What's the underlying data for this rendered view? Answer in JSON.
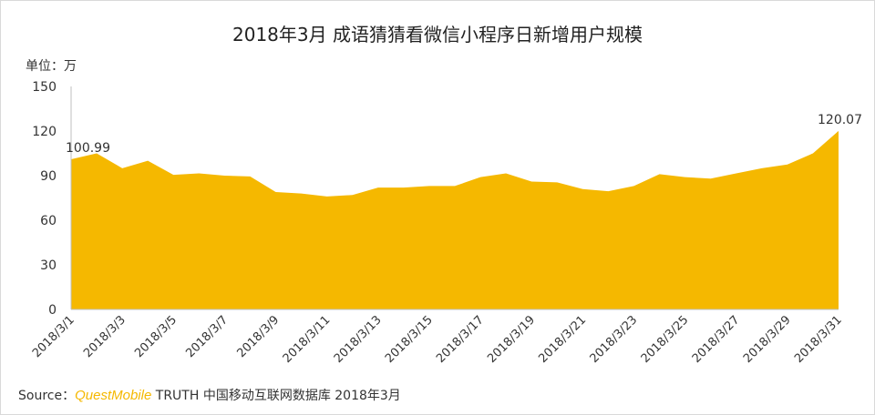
{
  "title": "2018年3月 成语猜猜看微信小程序日新增用户规模",
  "unit_label": "单位：万",
  "source": {
    "prefix": "Source：",
    "brand": "QuestMobile",
    "rest": " TRUTH 中国移动互联网数据库 2018年3月"
  },
  "chart_data": {
    "type": "area",
    "color": "#f5b800",
    "title": "2018年3月 成语猜猜看微信小程序日新增用户规模",
    "ylabel": "单位：万",
    "ylim": [
      0,
      150
    ],
    "yticks": [
      0,
      30,
      60,
      90,
      120,
      150
    ],
    "grid": false,
    "x": [
      "2018/3/1",
      "2018/3/2",
      "2018/3/3",
      "2018/3/4",
      "2018/3/5",
      "2018/3/6",
      "2018/3/7",
      "2018/3/8",
      "2018/3/9",
      "2018/3/10",
      "2018/3/11",
      "2018/3/12",
      "2018/3/13",
      "2018/3/14",
      "2018/3/15",
      "2018/3/16",
      "2018/3/17",
      "2018/3/18",
      "2018/3/19",
      "2018/3/20",
      "2018/3/21",
      "2018/3/22",
      "2018/3/23",
      "2018/3/24",
      "2018/3/25",
      "2018/3/26",
      "2018/3/27",
      "2018/3/28",
      "2018/3/29",
      "2018/3/30",
      "2018/3/31"
    ],
    "xtick_labels": [
      "2018/3/1",
      "2018/3/3",
      "2018/3/5",
      "2018/3/7",
      "2018/3/9",
      "2018/3/11",
      "2018/3/13",
      "2018/3/15",
      "2018/3/17",
      "2018/3/19",
      "2018/3/21",
      "2018/3/23",
      "2018/3/25",
      "2018/3/27",
      "2018/3/29",
      "2018/3/31"
    ],
    "values": [
      100.99,
      105,
      95,
      100,
      90.5,
      91.5,
      90,
      89.5,
      79,
      78,
      76,
      77,
      82,
      82,
      83,
      83,
      89,
      91.5,
      86,
      85.5,
      81,
      79.5,
      83,
      91,
      89,
      88,
      91.5,
      95,
      97.5,
      105,
      120.07
    ],
    "data_labels": [
      {
        "index": 0,
        "text": "100.99"
      },
      {
        "index": 30,
        "text": "120.07"
      }
    ]
  }
}
